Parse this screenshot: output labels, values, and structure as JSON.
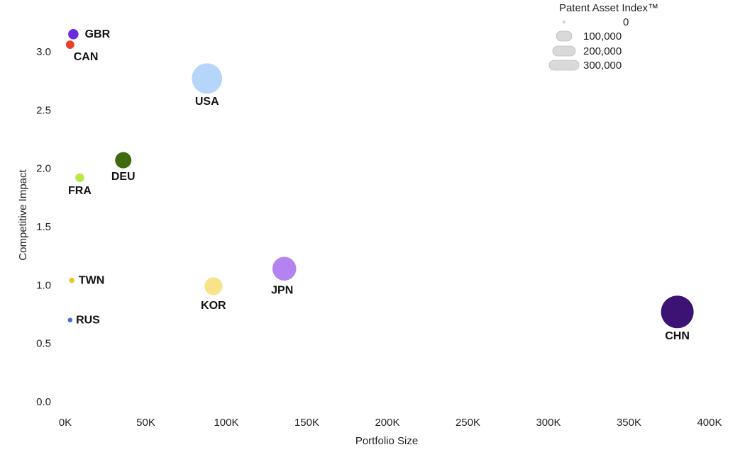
{
  "chart_data": {
    "type": "scatter",
    "xlabel": "Portfolio Size",
    "ylabel": "Competitive Impact",
    "xlim": [
      0,
      400000
    ],
    "ylim": [
      0,
      3.2
    ],
    "x_ticks": [
      0,
      50000,
      100000,
      150000,
      200000,
      250000,
      300000,
      350000,
      400000
    ],
    "x_tick_labels": [
      "0K",
      "50K",
      "100K",
      "150K",
      "200K",
      "250K",
      "300K",
      "350K",
      "400K"
    ],
    "y_ticks": [
      0.0,
      0.5,
      1.0,
      1.5,
      2.0,
      2.5,
      3.0
    ],
    "y_tick_labels": [
      "0.0",
      "0.5",
      "1.0",
      "1.5",
      "2.0",
      "2.5",
      "3.0"
    ],
    "grid": false,
    "legend": {
      "title": "Patent Asset Index™",
      "placement": "top-right",
      "items": [
        {
          "label": "0",
          "value": 0
        },
        {
          "label": "100,000",
          "value": 100000
        },
        {
          "label": "200,000",
          "value": 200000
        },
        {
          "label": "300,000",
          "value": 300000
        }
      ]
    },
    "points": [
      {
        "label": "GBR",
        "x": 5000,
        "y": 3.15,
        "size": 30000,
        "color": "#6a2bd9"
      },
      {
        "label": "CAN",
        "x": 3000,
        "y": 3.06,
        "size": 20000,
        "color": "#e8402a"
      },
      {
        "label": "USA",
        "x": 88000,
        "y": 2.77,
        "size": 260000,
        "color": "#b5d5fb"
      },
      {
        "label": "DEU",
        "x": 36000,
        "y": 2.07,
        "size": 75000,
        "color": "#3f6b0f"
      },
      {
        "label": "FRA",
        "x": 9000,
        "y": 1.92,
        "size": 22000,
        "color": "#b9e84a"
      },
      {
        "label": "JPN",
        "x": 136000,
        "y": 1.14,
        "size": 160000,
        "color": "#b483f1"
      },
      {
        "label": "TWN",
        "x": 4000,
        "y": 1.04,
        "size": 8000,
        "color": "#f2c31a"
      },
      {
        "label": "KOR",
        "x": 92000,
        "y": 0.99,
        "size": 90000,
        "color": "#f8e38a"
      },
      {
        "label": "CHN",
        "x": 380000,
        "y": 0.77,
        "size": 300000,
        "color": "#3c1274"
      },
      {
        "label": "RUS",
        "x": 3000,
        "y": 0.7,
        "size": 6000,
        "color": "#3c6fdc"
      }
    ]
  }
}
